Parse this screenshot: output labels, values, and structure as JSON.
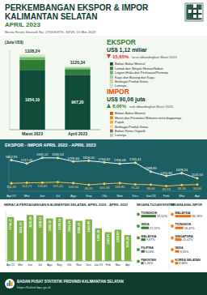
{
  "header": {
    "title": "PERKEMBANGAN EKSPOR & IMPOR",
    "region": "KALIMANTAN SELATAN",
    "period": "APRIL 2023",
    "release": "Berita Resmi Statistik No. 27/05/63/Th. XXVII, 15 Mei 2023"
  },
  "export": {
    "label": "EKSPOR",
    "amount": "US$ 1,12 miliar",
    "change": "15,65%",
    "change_note": "turun dibandingkan Maret 2023"
  },
  "import": {
    "label": "IMPOR",
    "amount": "US$ 90,06 juta",
    "change": "8,06%",
    "change_note": "naik dibandingkan Maret 2023",
    "commodities": [
      {
        "name": "Bahan Bakar Mineral",
        "color": "#e65100"
      },
      {
        "name": "Mesin dan Peralatan Mekanis serta bagiannya",
        "color": "#f57c00"
      },
      {
        "name": "Pupuk",
        "color": "#ffa726"
      },
      {
        "name": "Berbagai Produk Kimia",
        "color": "#ffcc80"
      },
      {
        "name": "Bahan Kimia Organik",
        "color": "#8d6e63"
      },
      {
        "name": "Lainnya",
        "color": "#bdbdbd"
      }
    ]
  },
  "chart_data": [
    {
      "type": "bar",
      "stacked": true,
      "y_label": "(Juta US$)",
      "categories": [
        "Maret 2023",
        "April 2023"
      ],
      "series": [
        {
          "name": "Bahan Bakar Mineral",
          "color": "#0f4c3a",
          "values": [
            1054.1,
            967.2
          ],
          "value_labels": [
            "1054,10",
            "967,20"
          ]
        },
        {
          "name": "Lemak dan Minyak Hewan/Nabati",
          "color": "#2e7d32",
          "values": [
            180.5,
            90.4
          ]
        },
        {
          "name": "Logam Mulia dan Perhiasan/Permata",
          "color": "#66bb6a",
          "values": [
            40.2,
            25.3
          ]
        },
        {
          "name": "Kayu dan Barang dari Kayu",
          "color": "#a5d6a7",
          "values": [
            20.1,
            16.2
          ]
        },
        {
          "name": "Berbagai Produk Kimia",
          "color": "#c5e1a5",
          "values": [
            10.3,
            8.1
          ]
        },
        {
          "name": "Lainnya",
          "color": "#dcedc8",
          "values": [
            23.04,
            13.14
          ]
        }
      ],
      "totals": [
        1328.24,
        1120.34
      ],
      "total_labels": [
        "1328,24",
        "1120,34"
      ],
      "ylim": [
        0,
        1400
      ],
      "tick_labels": "x",
      "data_labels": true
    },
    {
      "type": "line",
      "title": "EKSPOR - IMPOR APRIL 2022 - APRIL 2023",
      "categories": [
        "Apr'22",
        "Mei",
        "Jun",
        "Jul",
        "Agu",
        "Sep",
        "Okt",
        "Nov",
        "Des",
        "Jan'23",
        "Feb",
        "Mar",
        "Apr"
      ],
      "series": [
        {
          "color": "#ffffff",
          "values": [
            1852.93,
            1717.41,
            1945.12,
            1940.53,
            1799.64,
            1826.05,
            1764.62,
            1706.08,
            1745.41,
            1388.83,
            1215.84,
            1328.24,
            1120.34
          ],
          "value_labels": [
            "1852,93",
            "1717,41",
            "1945,12",
            "1940,53",
            "1799,64",
            "1826,05",
            "1764,62",
            "1706,08",
            "1745,41",
            "1388,83",
            "1215,84",
            "1328,24",
            "1120,34"
          ]
        },
        {
          "color": "#ffb74d",
          "axis": "y2",
          "values": [
            106.82,
            113.71,
            115.63,
            122.42,
            109.54,
            86.91,
            100.33,
            109.85,
            91.42,
            88.64,
            69.93,
            83.34,
            90.06
          ],
          "value_labels": [
            "106,82",
            "113,71",
            "115,63",
            "122,42",
            "109,54",
            "86,91",
            "100,33",
            "109,85",
            "91,42",
            "88,64",
            "69,93",
            "83,34",
            "90,06"
          ]
        }
      ],
      "ylim": [
        600,
        2100
      ],
      "y2lim": [
        0,
        500
      ],
      "tick_labels": "x",
      "data_labels": true,
      "marker": "circle"
    },
    {
      "type": "bar",
      "title": "NERACA PERDAGANGAN KALIMANTAN SELATAN, APRIL 2022 - APRIL 2023",
      "categories": [
        "Apr'22",
        "Mei",
        "Jun",
        "Jul",
        "Agu",
        "Sep",
        "Okt",
        "Nov",
        "Des",
        "Jan'23",
        "Feb",
        "Mar",
        "Apr"
      ],
      "values": [
        1746.11,
        1603.7,
        1829.49,
        1818.11,
        1690.1,
        1739.14,
        1664.29,
        1596.23,
        1653.99,
        1300.19,
        1145.91,
        1244.9,
        1030.28
      ],
      "value_labels": [
        "1746,11",
        "1603,70",
        "1829,49",
        "1818,11",
        "1690,10",
        "1739,14",
        "1664,29",
        "1596,23",
        "1653,99",
        "1300,19",
        "1145,91",
        "1244,90",
        "1030,28"
      ],
      "color": "#7cb342",
      "ylim": [
        0,
        2000
      ],
      "tick_labels": "x",
      "data_labels": true
    }
  ],
  "countries": {
    "export_title": "NEGARA TUJUAN EKSPOR",
    "import_title": "NEGARA ASAL IMPOR",
    "export": [
      {
        "name": "TIONGKOK",
        "share": 33.52,
        "label": "33,52%"
      },
      {
        "name": "INDIA",
        "share": 17.21,
        "label": "17,21%"
      },
      {
        "name": "MALAYSIA",
        "share": 9.87,
        "label": "9,87%"
      },
      {
        "name": "FILIPINA",
        "share": 8.03,
        "label": "8,03%"
      },
      {
        "name": "PAKISTAN",
        "share": 5.46,
        "label": "5,46%"
      }
    ],
    "import": [
      {
        "name": "MALAYSIA",
        "share": 36.18,
        "label": "36,18%"
      },
      {
        "name": "TIONGKOK",
        "share": 18.47,
        "label": "18,47%"
      },
      {
        "name": "SINGAPURA",
        "share": 15.02,
        "label": "15,02%"
      },
      {
        "name": "INDIA",
        "share": 9.35,
        "label": "9,35%"
      },
      {
        "name": "KOREA SELATAN",
        "share": 6.88,
        "label": "6,88%"
      }
    ]
  },
  "footer": {
    "agency": "BADAN PUSAT STATISTIK PROVINSI KALIMANTAN SELATAN",
    "url": "https://kalsel.bps.go.id"
  }
}
